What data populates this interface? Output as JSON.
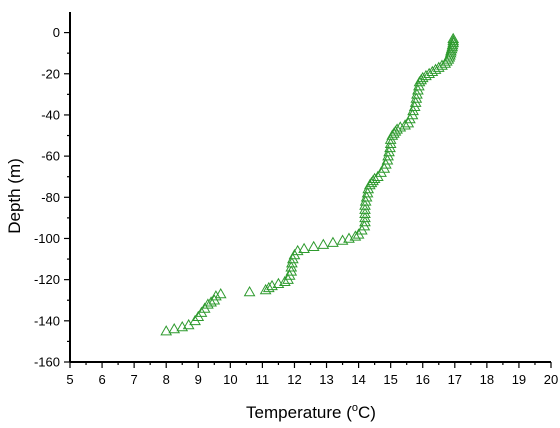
{
  "chart_data": {
    "type": "scatter",
    "xlabel": "Temperature (°C)",
    "xlabel_parts": {
      "pre": "Temperature (",
      "sup": "o",
      "post": "C)"
    },
    "ylabel": "Depth (m)",
    "xlim": [
      5,
      20
    ],
    "ylim": [
      -160,
      10
    ],
    "xticks": [
      5,
      6,
      7,
      8,
      9,
      10,
      11,
      12,
      13,
      14,
      15,
      16,
      17,
      18,
      19,
      20
    ],
    "xtick_labels": [
      "5",
      "6",
      "7",
      "8",
      "9",
      "10",
      "11",
      "12",
      "13",
      "14",
      "15",
      "16",
      "17",
      "18",
      "19",
      "20"
    ],
    "yticks": [
      0,
      -20,
      -40,
      -60,
      -80,
      -100,
      -120,
      -140,
      -160
    ],
    "ytick_labels": [
      "0",
      "-20",
      "-40",
      "-60",
      "-80",
      "-100",
      "-120",
      "-140",
      "-160"
    ],
    "grid": false,
    "marker": "open-triangle",
    "marker_color": "#2e9a2e",
    "series": [
      {
        "points": [
          [
            16.95,
            -3
          ],
          [
            16.95,
            -4
          ],
          [
            16.95,
            -5
          ],
          [
            16.93,
            -6
          ],
          [
            16.92,
            -7
          ],
          [
            16.9,
            -8
          ],
          [
            16.88,
            -9
          ],
          [
            16.87,
            -10
          ],
          [
            16.85,
            -11
          ],
          [
            16.83,
            -12
          ],
          [
            16.8,
            -13
          ],
          [
            16.75,
            -14
          ],
          [
            16.7,
            -15
          ],
          [
            16.6,
            -16
          ],
          [
            16.5,
            -17
          ],
          [
            16.4,
            -18
          ],
          [
            16.3,
            -19
          ],
          [
            16.2,
            -20
          ],
          [
            16.1,
            -21
          ],
          [
            16.0,
            -22
          ],
          [
            15.95,
            -23
          ],
          [
            15.9,
            -24
          ],
          [
            15.88,
            -26
          ],
          [
            15.85,
            -28
          ],
          [
            15.82,
            -30
          ],
          [
            15.8,
            -32
          ],
          [
            15.78,
            -34
          ],
          [
            15.75,
            -36
          ],
          [
            15.7,
            -38
          ],
          [
            15.68,
            -40
          ],
          [
            15.6,
            -42
          ],
          [
            15.55,
            -44
          ],
          [
            15.45,
            -45
          ],
          [
            15.3,
            -46
          ],
          [
            15.2,
            -47
          ],
          [
            15.15,
            -48
          ],
          [
            15.1,
            -49
          ],
          [
            15.05,
            -50
          ],
          [
            15.0,
            -52
          ],
          [
            15.0,
            -54
          ],
          [
            14.98,
            -56
          ],
          [
            14.95,
            -58
          ],
          [
            14.92,
            -60
          ],
          [
            14.9,
            -62
          ],
          [
            14.85,
            -64
          ],
          [
            14.8,
            -66
          ],
          [
            14.7,
            -68
          ],
          [
            14.6,
            -70
          ],
          [
            14.5,
            -71
          ],
          [
            14.45,
            -72
          ],
          [
            14.4,
            -73
          ],
          [
            14.35,
            -74
          ],
          [
            14.3,
            -76
          ],
          [
            14.28,
            -78
          ],
          [
            14.25,
            -80
          ],
          [
            14.22,
            -82
          ],
          [
            14.2,
            -84
          ],
          [
            14.2,
            -86
          ],
          [
            14.2,
            -88
          ],
          [
            14.2,
            -90
          ],
          [
            14.2,
            -92
          ],
          [
            14.18,
            -94
          ],
          [
            14.1,
            -96
          ],
          [
            14.0,
            -98
          ],
          [
            13.9,
            -99
          ],
          [
            13.7,
            -100
          ],
          [
            13.5,
            -101
          ],
          [
            13.2,
            -102
          ],
          [
            12.9,
            -103
          ],
          [
            12.6,
            -104
          ],
          [
            12.3,
            -105
          ],
          [
            12.1,
            -106
          ],
          [
            12.0,
            -108
          ],
          [
            11.95,
            -110
          ],
          [
            11.92,
            -112
          ],
          [
            11.9,
            -114
          ],
          [
            11.9,
            -116
          ],
          [
            11.85,
            -118
          ],
          [
            11.8,
            -120
          ],
          [
            11.7,
            -121
          ],
          [
            11.5,
            -122
          ],
          [
            11.3,
            -123
          ],
          [
            11.2,
            -124
          ],
          [
            11.1,
            -125
          ],
          [
            10.6,
            -126
          ],
          [
            9.7,
            -127
          ],
          [
            9.55,
            -128
          ],
          [
            9.5,
            -130
          ],
          [
            9.4,
            -131
          ],
          [
            9.3,
            -132
          ],
          [
            9.2,
            -134
          ],
          [
            9.1,
            -136
          ],
          [
            9.0,
            -138
          ],
          [
            8.9,
            -140
          ],
          [
            8.7,
            -142
          ],
          [
            8.5,
            -143
          ],
          [
            8.25,
            -144
          ],
          [
            8.0,
            -145
          ]
        ]
      }
    ]
  }
}
